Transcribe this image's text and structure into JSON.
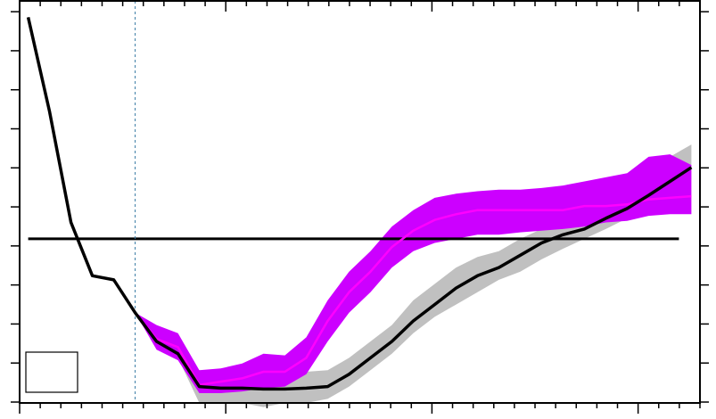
{
  "chart_data": {
    "type": "line",
    "title": "",
    "xlabel": "",
    "ylabel": "",
    "x": [
      0,
      1,
      2,
      3,
      4,
      5,
      6,
      7,
      8,
      9,
      10,
      11,
      12,
      13,
      14,
      15,
      16,
      17,
      18,
      19,
      20,
      21,
      22,
      23,
      24,
      25,
      26,
      27,
      28,
      29,
      30,
      31
    ],
    "xlim": [
      -0.4,
      31.4
    ],
    "ylim": [
      -2.0,
      2.9
    ],
    "reference_line": 0,
    "vertical_marker_x": 5,
    "series": [
      {
        "color": "#000000",
        "values": [
          2.7,
          1.55,
          0.2,
          -0.45,
          -0.5,
          -0.9,
          -1.25,
          -1.4,
          -1.8,
          -1.82,
          -1.82,
          -1.83,
          -1.83,
          -1.82,
          -1.8,
          -1.65,
          -1.45,
          -1.25,
          -1.0,
          -0.8,
          -0.6,
          -0.45,
          -0.35,
          -0.2,
          -0.05,
          0.05,
          0.12,
          0.25,
          0.37,
          0.53,
          0.7,
          0.87
        ],
        "band_lower": [
          null,
          null,
          null,
          null,
          null,
          -0.9,
          -1.3,
          -1.45,
          -2.0,
          -2.0,
          -2.0,
          -2.05,
          -2.0,
          -2.0,
          -1.95,
          -1.8,
          -1.6,
          -1.4,
          -1.15,
          -0.95,
          -0.8,
          -0.65,
          -0.5,
          -0.4,
          -0.25,
          -0.12,
          0.0,
          0.12,
          0.25,
          0.4,
          0.55,
          0.72
        ],
        "band_upper": [
          null,
          null,
          null,
          null,
          null,
          -0.9,
          -1.15,
          -1.3,
          -1.6,
          -1.62,
          -1.62,
          -1.65,
          -1.65,
          -1.62,
          -1.6,
          -1.45,
          -1.25,
          -1.05,
          -0.75,
          -0.55,
          -0.35,
          -0.22,
          -0.15,
          0.0,
          0.12,
          0.25,
          0.3,
          0.45,
          0.68,
          0.82,
          1.0,
          1.15
        ]
      },
      {
        "color": "#ff00ff",
        "band_color": "#cc00ff",
        "values": [
          null,
          null,
          null,
          null,
          null,
          -0.9,
          -1.22,
          -1.32,
          -1.78,
          -1.74,
          -1.7,
          -1.62,
          -1.62,
          -1.45,
          -1.0,
          -0.65,
          -0.4,
          -0.1,
          0.1,
          0.23,
          0.3,
          0.35,
          0.35,
          0.35,
          0.35,
          0.35,
          0.4,
          0.4,
          0.42,
          0.48,
          0.5,
          0.52
        ],
        "band_lower": [
          null,
          null,
          null,
          null,
          null,
          -0.9,
          -1.35,
          -1.48,
          -1.88,
          -1.88,
          -1.86,
          -1.82,
          -1.8,
          -1.65,
          -1.25,
          -0.9,
          -0.65,
          -0.35,
          -0.15,
          -0.05,
          0.0,
          0.05,
          0.05,
          0.08,
          0.1,
          0.12,
          0.15,
          0.2,
          0.22,
          0.28,
          0.3,
          0.3
        ],
        "band_upper": [
          null,
          null,
          null,
          null,
          null,
          -0.9,
          -1.05,
          -1.15,
          -1.6,
          -1.58,
          -1.52,
          -1.4,
          -1.42,
          -1.2,
          -0.75,
          -0.4,
          -0.15,
          0.15,
          0.35,
          0.5,
          0.55,
          0.58,
          0.6,
          0.6,
          0.62,
          0.65,
          0.7,
          0.75,
          0.8,
          1.0,
          1.03,
          0.9
        ]
      }
    ]
  }
}
